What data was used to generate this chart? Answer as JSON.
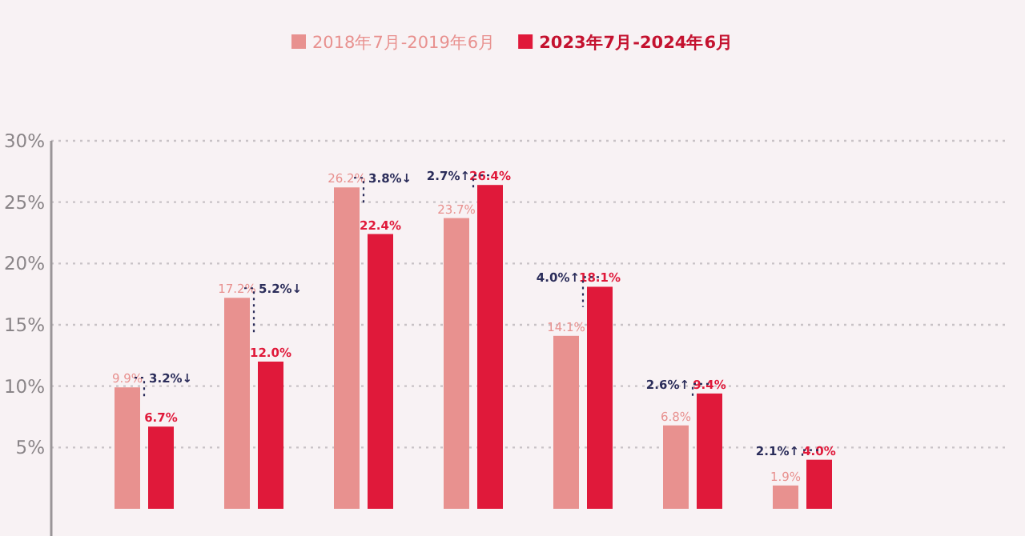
{
  "chart_data": {
    "type": "bar",
    "categories": [
      null,
      null,
      null,
      null,
      null,
      null,
      null
    ],
    "series": [
      {
        "name": "2018年7月-2019年6月",
        "color": "#e8918f",
        "values": [
          9.9,
          17.2,
          26.2,
          23.7,
          14.1,
          6.8,
          1.9
        ],
        "value_labels": [
          "9.9%",
          "17.2%",
          "26.2%",
          "23.7%",
          "14.1%",
          "6.8%",
          "1.9%"
        ]
      },
      {
        "name": "2023年7月-2024年6月",
        "color": "#e0193a",
        "values": [
          6.7,
          12.0,
          22.4,
          26.4,
          18.1,
          9.4,
          4.0
        ],
        "value_labels": [
          "6.7%",
          "12.0%",
          "22.4%",
          "26.4%",
          "18.1%",
          "9.4%",
          "4.0%"
        ]
      }
    ],
    "ylim": [
      0,
      30
    ],
    "yticks": [
      {
        "value": 5,
        "label": "5%"
      },
      {
        "value": 10,
        "label": "10%"
      },
      {
        "value": 15,
        "label": "15%"
      },
      {
        "value": 20,
        "label": "20%"
      },
      {
        "value": 25,
        "label": "25%"
      },
      {
        "value": 30,
        "label": "30%"
      }
    ],
    "grid": "y",
    "legend": "top",
    "annotations": [
      "3.2%↓",
      "5.2%↓",
      "3.8%↓",
      "2.7%↑",
      "4.0%↑",
      "2.6%↑",
      "2.1%↑"
    ]
  }
}
